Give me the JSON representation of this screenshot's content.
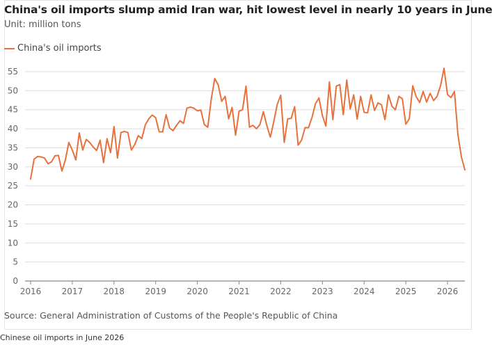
{
  "title": "China's oil imports slump amid Iran war, hit lowest level in nearly 10 years in June",
  "subtitle": "Unit: million tons",
  "source": "Source: General Administration of Customs of the People's Republic of China",
  "caption": "Chinese oil imports in June 2026",
  "colors": {
    "series": "#e8703a",
    "grid": "#dedede",
    "axis": "#888888"
  },
  "chart_data": {
    "type": "line",
    "title": "China's oil imports slump amid Iran war, hit lowest level in nearly 10 years in June",
    "ylabel": "Unit: million tons",
    "xlabel": "",
    "ylim": [
      0,
      55
    ],
    "yticks": [
      "0",
      "5",
      "10",
      "15",
      "20",
      "25",
      "30",
      "35",
      "40",
      "45",
      "50",
      "55"
    ],
    "xticks": [
      "2016",
      "2017",
      "2018",
      "2019",
      "2020",
      "2021",
      "2022",
      "2023",
      "2024",
      "2025",
      "2026"
    ],
    "grid": "horizontal",
    "legend": "top-left",
    "series": [
      {
        "name": "China's oil imports",
        "x": [
          "2016-01",
          "2016-02",
          "2016-03",
          "2016-04",
          "2016-05",
          "2016-06",
          "2016-07",
          "2016-08",
          "2016-09",
          "2016-10",
          "2016-11",
          "2016-12",
          "2017-01",
          "2017-02",
          "2017-03",
          "2017-04",
          "2017-05",
          "2017-06",
          "2017-07",
          "2017-08",
          "2017-09",
          "2017-10",
          "2017-11",
          "2017-12",
          "2018-01",
          "2018-02",
          "2018-03",
          "2018-04",
          "2018-05",
          "2018-06",
          "2018-07",
          "2018-08",
          "2018-09",
          "2018-10",
          "2018-11",
          "2018-12",
          "2019-01",
          "2019-02",
          "2019-03",
          "2019-04",
          "2019-05",
          "2019-06",
          "2019-07",
          "2019-08",
          "2019-09",
          "2019-10",
          "2019-11",
          "2019-12",
          "2020-01",
          "2020-02",
          "2020-03",
          "2020-04",
          "2020-05",
          "2020-06",
          "2020-07",
          "2020-08",
          "2020-09",
          "2020-10",
          "2020-11",
          "2020-12",
          "2021-01",
          "2021-02",
          "2021-03",
          "2021-04",
          "2021-05",
          "2021-06",
          "2021-07",
          "2021-08",
          "2021-09",
          "2021-10",
          "2021-11",
          "2021-12",
          "2022-01",
          "2022-02",
          "2022-03",
          "2022-04",
          "2022-05",
          "2022-06",
          "2022-07",
          "2022-08",
          "2022-09",
          "2022-10",
          "2022-11",
          "2022-12",
          "2023-01",
          "2023-02",
          "2023-03",
          "2023-04",
          "2023-05",
          "2023-06",
          "2023-07",
          "2023-08",
          "2023-09",
          "2023-10",
          "2023-11",
          "2023-12",
          "2024-01",
          "2024-02",
          "2024-03",
          "2024-04",
          "2024-05",
          "2024-06",
          "2024-07",
          "2024-08",
          "2024-09",
          "2024-10",
          "2024-11",
          "2024-12",
          "2025-01",
          "2025-02",
          "2025-03",
          "2025-04",
          "2025-05",
          "2025-06",
          "2025-07",
          "2025-08",
          "2025-09",
          "2025-10",
          "2025-11",
          "2025-12",
          "2026-01",
          "2026-02",
          "2026-03",
          "2026-04",
          "2026-05",
          "2026-06"
        ],
        "values": [
          26.8,
          32.0,
          32.7,
          32.6,
          32.3,
          30.8,
          31.3,
          32.9,
          33.0,
          28.9,
          31.8,
          36.4,
          34.4,
          31.8,
          38.9,
          34.4,
          37.2,
          36.4,
          35.2,
          34.3,
          37.0,
          31.1,
          37.4,
          33.7,
          40.6,
          32.3,
          39.0,
          39.3,
          39.0,
          34.4,
          35.9,
          38.2,
          37.4,
          41.0,
          42.6,
          43.6,
          42.9,
          39.2,
          39.2,
          43.7,
          40.2,
          39.5,
          40.9,
          42.1,
          41.4,
          45.4,
          45.7,
          45.4,
          44.7,
          44.9,
          41.1,
          40.4,
          47.8,
          53.2,
          51.5,
          47.2,
          48.5,
          42.6,
          45.6,
          38.3,
          44.6,
          45.0,
          51.2,
          40.4,
          40.9,
          40.0,
          41.1,
          44.5,
          40.8,
          37.8,
          41.9,
          46.4,
          48.8,
          36.4,
          42.6,
          42.7,
          45.8,
          35.7,
          37.0,
          40.3,
          40.3,
          43.0,
          46.6,
          48.1,
          43.4,
          40.7,
          52.3,
          42.4,
          51.2,
          51.6,
          43.7,
          52.8,
          45.2,
          48.9,
          42.5,
          48.5,
          44.3,
          44.2,
          48.9,
          44.8,
          46.8,
          46.3,
          42.4,
          48.9,
          45.9,
          45.0,
          48.5,
          47.9,
          41.2,
          42.6,
          51.3,
          48.4,
          46.9,
          49.8,
          47.0,
          49.3,
          47.4,
          48.5,
          51.3,
          55.9,
          49.0,
          48.2,
          49.8,
          38.4,
          32.6,
          29.2
        ]
      }
    ]
  }
}
